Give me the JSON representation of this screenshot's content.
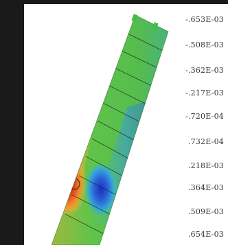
{
  "legend": {
    "values": [
      "-.653E-03",
      "-.508E-03",
      "-.362E-03",
      "-.217E-03",
      "-.720E-04",
      ".732E-04",
      ".218E-03",
      ".364E-03",
      ".509E-03",
      ".654E-03"
    ]
  },
  "colors": {
    "background": "#1b1b1b",
    "panel": "#ffffff",
    "dominant": "#59c24a",
    "hot": "#d81e1e",
    "cold": "#2d4fd0"
  }
}
